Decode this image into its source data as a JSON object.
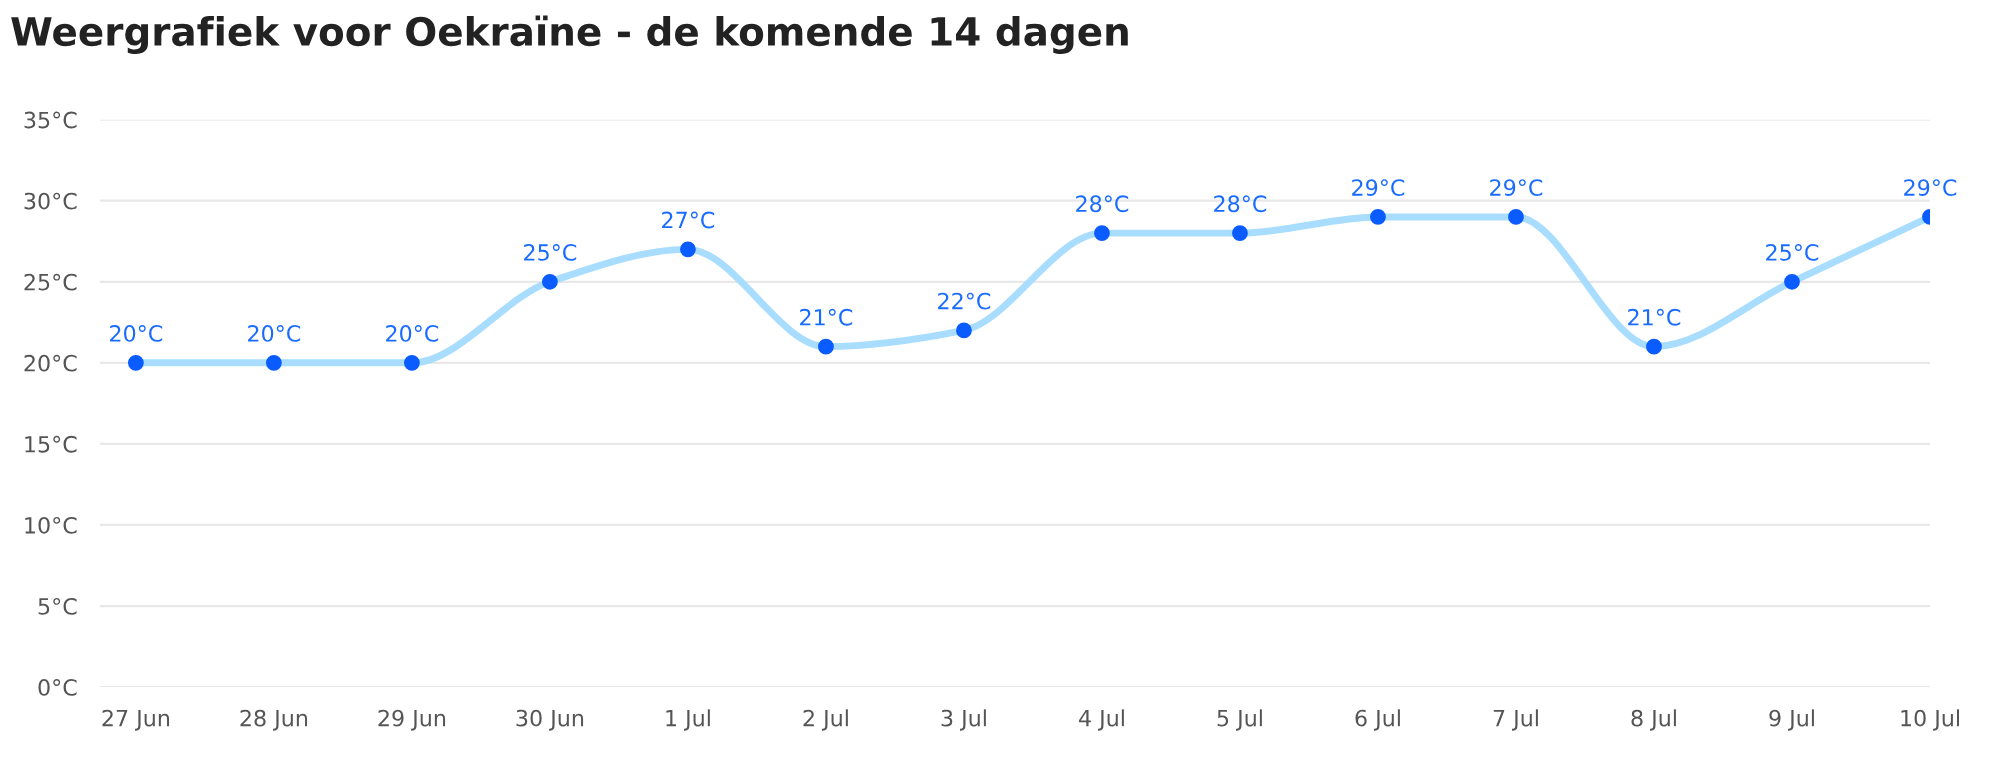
{
  "chart_data": {
    "type": "line",
    "title": "Weergrafiek voor Oekraïne - de komende 14 dagen",
    "categories": [
      "27 Jun",
      "28 Jun",
      "29 Jun",
      "30 Jun",
      "1 Jul",
      "2 Jul",
      "3 Jul",
      "4 Jul",
      "5 Jul",
      "6 Jul",
      "7 Jul",
      "8 Jul",
      "9 Jul",
      "10 Jul"
    ],
    "series": [
      {
        "color": "#a8ddff",
        "values": [
          20,
          20,
          20,
          25,
          27,
          21,
          22,
          28,
          28,
          29,
          29,
          21,
          25,
          29
        ],
        "value_labels": [
          "20°C",
          "20°C",
          "20°C",
          "25°C",
          "27°C",
          "21°C",
          "22°C",
          "28°C",
          "28°C",
          "29°C",
          "29°C",
          "21°C",
          "25°C",
          "29°C"
        ]
      }
    ],
    "ylim": [
      0,
      35
    ],
    "yticks": [
      {
        "value": 0,
        "label": "0°C"
      },
      {
        "value": 5,
        "label": "5°C"
      },
      {
        "value": 10,
        "label": "10°C"
      },
      {
        "value": 15,
        "label": "15°C"
      },
      {
        "value": 20,
        "label": "20°C"
      },
      {
        "value": 25,
        "label": "25°C"
      },
      {
        "value": 30,
        "label": "30°C"
      },
      {
        "value": 35,
        "label": "35°C"
      }
    ],
    "grid": "y",
    "marker": "circle",
    "line_style": "solid"
  }
}
